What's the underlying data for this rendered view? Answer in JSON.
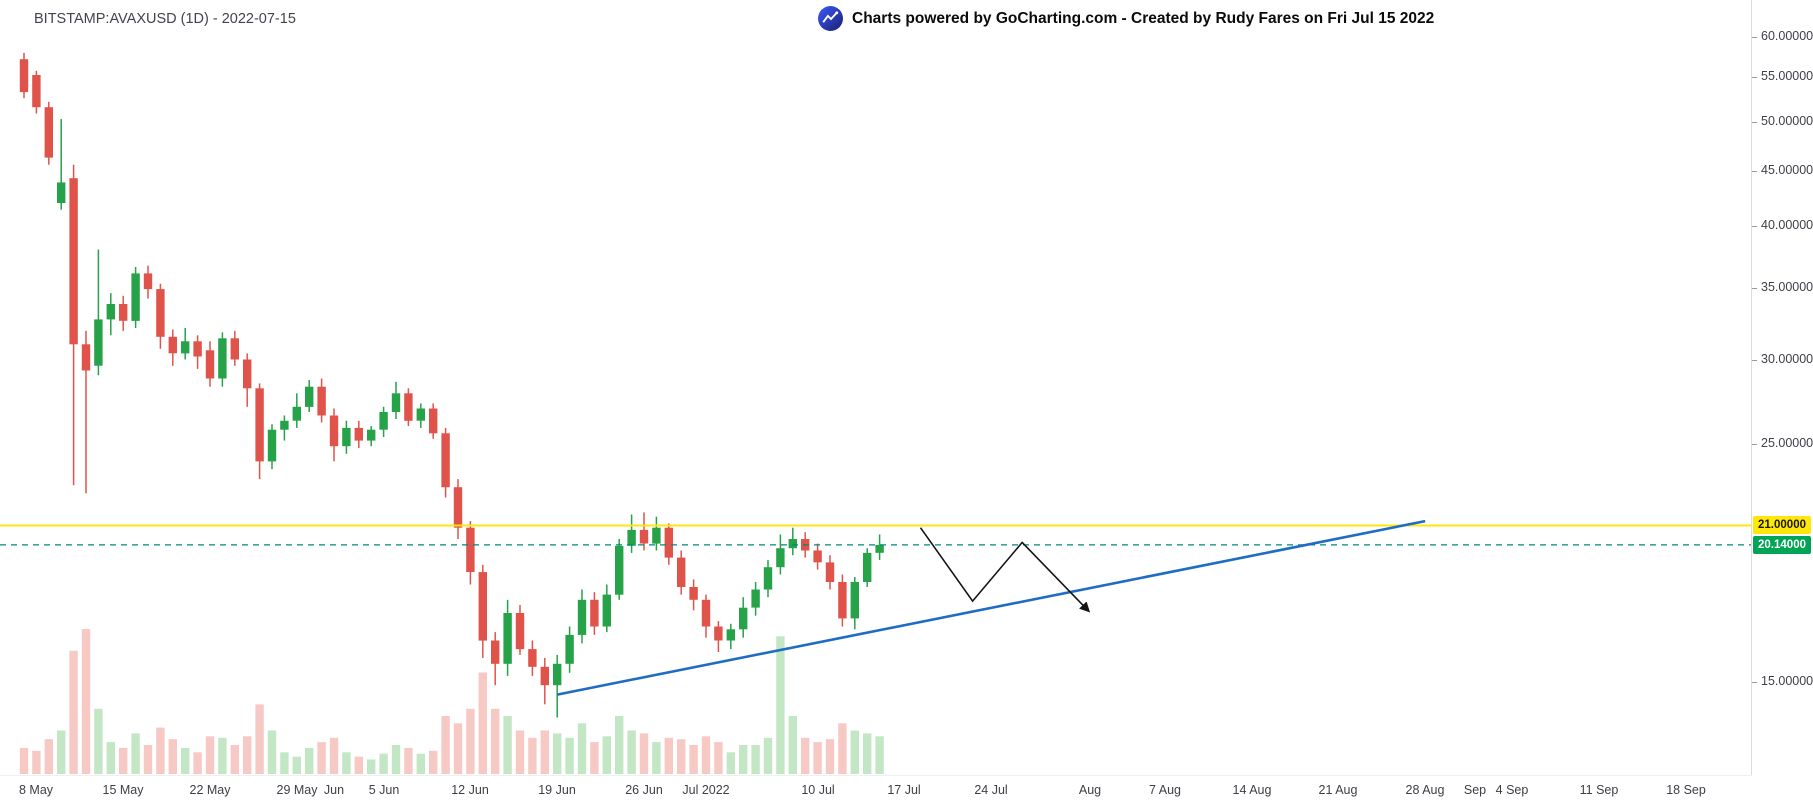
{
  "header": {
    "symbol_text": "BITSTAMP:AVAXUSD (1D) - 2022-07-15",
    "credit_text": "Charts powered by GoCharting.com - Created by Rudy Fares on Fri Jul 15 2022"
  },
  "colors": {
    "bull": "#26a249",
    "bear": "#e0534a",
    "volume_up": "#c3e6c5",
    "volume_down": "#f6c9c4",
    "background": "#ffffff",
    "axis_text": "#3d3f46"
  },
  "chart_data": {
    "type": "candlestick",
    "exchange": "BITSTAMP",
    "pair": "AVAXUSD",
    "interval": "1D",
    "chart_date": "2022-07-15",
    "scale": "logarithmic",
    "last_price": 20.14,
    "start_date": "2022-05-07",
    "ohlcv_format": [
      "open",
      "high",
      "low",
      "close",
      "volume_relative"
    ],
    "candles": [
      [
        57.2,
        58.0,
        52.6,
        53.3,
        18
      ],
      [
        55.3,
        55.8,
        50.9,
        51.6,
        16
      ],
      [
        51.6,
        52.2,
        45.6,
        46.3,
        24
      ],
      [
        42.0,
        50.3,
        41.4,
        43.9,
        30
      ],
      [
        44.3,
        45.6,
        22.9,
        31.0,
        85
      ],
      [
        31.0,
        31.9,
        22.5,
        29.3,
        100
      ],
      [
        29.6,
        38.0,
        29.0,
        32.7,
        45
      ],
      [
        32.7,
        34.6,
        31.6,
        33.8,
        22
      ],
      [
        33.8,
        34.4,
        31.9,
        32.6,
        18
      ],
      [
        32.6,
        36.6,
        32.1,
        36.1,
        28
      ],
      [
        36.1,
        36.7,
        34.2,
        34.9,
        20
      ],
      [
        34.9,
        35.3,
        30.7,
        31.5,
        32
      ],
      [
        31.5,
        32.0,
        29.6,
        30.4,
        24
      ],
      [
        30.4,
        32.1,
        30.0,
        31.2,
        18
      ],
      [
        31.2,
        31.6,
        29.4,
        30.2,
        15
      ],
      [
        30.6,
        31.2,
        28.3,
        28.8,
        26
      ],
      [
        28.8,
        31.8,
        28.3,
        31.4,
        25
      ],
      [
        31.4,
        31.9,
        29.6,
        30.0,
        20
      ],
      [
        30.0,
        30.4,
        27.1,
        28.2,
        26
      ],
      [
        28.2,
        28.5,
        23.2,
        24.1,
        48
      ],
      [
        24.1,
        26.1,
        23.7,
        25.8,
        30
      ],
      [
        25.8,
        26.6,
        25.2,
        26.3,
        15
      ],
      [
        26.3,
        27.9,
        25.9,
        27.1,
        12
      ],
      [
        27.1,
        28.7,
        26.8,
        28.3,
        18
      ],
      [
        28.3,
        28.8,
        26.2,
        26.6,
        22
      ],
      [
        26.6,
        27.0,
        24.1,
        24.9,
        25
      ],
      [
        24.9,
        26.3,
        24.5,
        25.9,
        15
      ],
      [
        25.9,
        26.3,
        24.8,
        25.2,
        12
      ],
      [
        25.2,
        26.0,
        24.9,
        25.8,
        10
      ],
      [
        25.8,
        27.1,
        25.4,
        26.8,
        14
      ],
      [
        26.8,
        28.6,
        26.4,
        27.9,
        20
      ],
      [
        27.9,
        28.2,
        26.0,
        26.3,
        18
      ],
      [
        26.3,
        27.3,
        25.9,
        27.0,
        14
      ],
      [
        27.0,
        27.3,
        25.3,
        25.6,
        16
      ],
      [
        25.6,
        25.9,
        22.3,
        22.8,
        40
      ],
      [
        22.8,
        23.2,
        20.4,
        20.9,
        35
      ],
      [
        20.9,
        21.2,
        18.5,
        19.0,
        45
      ],
      [
        19.0,
        19.3,
        15.8,
        16.4,
        70
      ],
      [
        16.4,
        16.7,
        14.9,
        15.6,
        45
      ],
      [
        15.6,
        17.9,
        15.2,
        17.4,
        40
      ],
      [
        17.4,
        17.7,
        15.9,
        16.1,
        30
      ],
      [
        16.1,
        16.4,
        15.2,
        15.5,
        25
      ],
      [
        15.5,
        15.8,
        14.3,
        14.9,
        30
      ],
      [
        14.9,
        15.9,
        13.9,
        15.6,
        28
      ],
      [
        15.6,
        16.9,
        15.3,
        16.6,
        25
      ],
      [
        16.6,
        18.3,
        16.3,
        17.9,
        35
      ],
      [
        17.9,
        18.2,
        16.6,
        16.9,
        22
      ],
      [
        16.9,
        18.5,
        16.7,
        18.1,
        26
      ],
      [
        18.1,
        20.4,
        17.9,
        20.1,
        40
      ],
      [
        20.1,
        21.5,
        19.8,
        20.8,
        30
      ],
      [
        20.8,
        21.6,
        19.9,
        20.2,
        28
      ],
      [
        20.2,
        21.4,
        19.9,
        20.9,
        22
      ],
      [
        20.9,
        21.1,
        19.3,
        19.6,
        25
      ],
      [
        19.6,
        19.9,
        18.1,
        18.4,
        24
      ],
      [
        18.4,
        18.7,
        17.5,
        17.9,
        20
      ],
      [
        17.9,
        18.1,
        16.5,
        16.9,
        26
      ],
      [
        16.9,
        17.1,
        16.0,
        16.4,
        22
      ],
      [
        16.4,
        17.0,
        16.1,
        16.8,
        15
      ],
      [
        16.8,
        18.0,
        16.5,
        17.6,
        20
      ],
      [
        17.6,
        18.6,
        17.3,
        18.3,
        20
      ],
      [
        18.3,
        19.5,
        18.0,
        19.2,
        25
      ],
      [
        19.2,
        20.6,
        18.9,
        20.0,
        95
      ],
      [
        20.0,
        20.9,
        19.7,
        20.4,
        40
      ],
      [
        20.4,
        20.7,
        19.6,
        19.9,
        25
      ],
      [
        19.9,
        20.2,
        19.1,
        19.4,
        22
      ],
      [
        19.4,
        19.7,
        18.3,
        18.6,
        24
      ],
      [
        18.6,
        18.9,
        16.9,
        17.2,
        35
      ],
      [
        17.2,
        18.8,
        16.8,
        18.6,
        30
      ],
      [
        18.6,
        20.0,
        18.4,
        19.8,
        28
      ],
      [
        19.8,
        20.6,
        19.5,
        20.14,
        26
      ]
    ],
    "price_axis_ticks": [
      60,
      55,
      50,
      45,
      40,
      35,
      30,
      25,
      15
    ],
    "price_axis_decimals": 5,
    "time_axis_ticks": [
      {
        "label": "8 May",
        "day": 1
      },
      {
        "label": "15 May",
        "day": 8
      },
      {
        "label": "22 May",
        "day": 15
      },
      {
        "label": "29 May",
        "day": 22
      },
      {
        "label": "Jun",
        "day": 25
      },
      {
        "label": "5 Jun",
        "day": 29
      },
      {
        "label": "12 Jun",
        "day": 36
      },
      {
        "label": "19 Jun",
        "day": 43
      },
      {
        "label": "26 Jun",
        "day": 50
      },
      {
        "label": "Jul 2022",
        "day": 55
      },
      {
        "label": "10 Jul",
        "day": 64
      },
      {
        "label": "17 Jul",
        "day": 71
      },
      {
        "label": "24 Jul",
        "day": 78
      },
      {
        "label": "Aug",
        "day": 86
      },
      {
        "label": "7 Aug",
        "day": 92
      },
      {
        "label": "14 Aug",
        "day": 99
      },
      {
        "label": "21 Aug",
        "day": 106
      },
      {
        "label": "28 Aug",
        "day": 113
      },
      {
        "label": "Sep",
        "day": 117
      },
      {
        "label": "4 Sep",
        "day": 120
      },
      {
        "label": "11 Sep",
        "day": 127
      },
      {
        "label": "18 Sep",
        "day": 134
      }
    ],
    "ylim": [
      13.2,
      61.5
    ],
    "grid": "off",
    "annotations": {
      "resistance_line": {
        "price": 21.0,
        "label": "21.00000",
        "color": "#ffe60b",
        "style": "solid"
      },
      "current_price": {
        "price": 20.14,
        "label": "20.14000",
        "line_color": "#00897b",
        "tag_bg": "#00a455",
        "style": "dashed"
      },
      "trendline": {
        "type": "ascending-support",
        "from_day": 43,
        "from_price": 14.6,
        "to_day": 113,
        "to_price": 21.2,
        "color": "#1f6cc5"
      },
      "projection": {
        "color": "#141414",
        "points_day_price": [
          [
            72.3,
            20.9
          ],
          [
            76.5,
            17.85
          ],
          [
            80.5,
            20.25
          ],
          [
            85.8,
            17.5
          ]
        ]
      }
    }
  }
}
